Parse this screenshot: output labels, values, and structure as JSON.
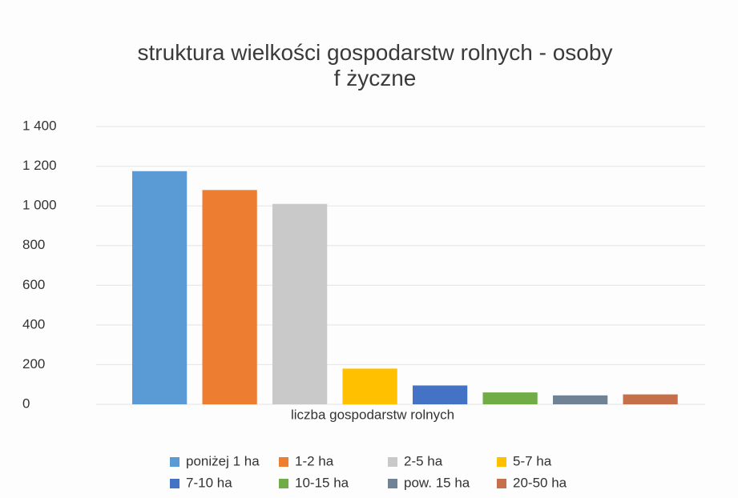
{
  "chart_data": {
    "type": "bar",
    "title": "struktura wielkości gospodarstw rolnych - osoby f życzne",
    "categories": [
      "liczba gospodarstw rolnych"
    ],
    "series": [
      {
        "name": "poniżej 1 ha",
        "color": "#5b9bd5",
        "values": [
          1175
        ]
      },
      {
        "name": "1-2 ha",
        "color": "#ed7d31",
        "values": [
          1080
        ]
      },
      {
        "name": "2-5 ha",
        "color": "#c9c9c9",
        "values": [
          1010
        ]
      },
      {
        "name": "5-7 ha",
        "color": "#ffc000",
        "values": [
          180
        ]
      },
      {
        "name": "7-10 ha",
        "color": "#4472c4",
        "values": [
          95
        ]
      },
      {
        "name": "10-15 ha",
        "color": "#70ad47",
        "values": [
          60
        ]
      },
      {
        "name": "pow. 15 ha",
        "color": "#6f8394",
        "values": [
          45
        ]
      },
      {
        "name": "20-50 ha",
        "color": "#c5704a",
        "values": [
          50
        ]
      }
    ],
    "ylim": [
      0,
      1400
    ],
    "yticks": [
      0,
      200,
      400,
      600,
      800,
      {
        "value": 1000,
        "label": "1 000"
      },
      {
        "value": 1200,
        "label": "1 200"
      },
      {
        "value": 1400,
        "label": "1 400"
      }
    ],
    "grid": true
  }
}
